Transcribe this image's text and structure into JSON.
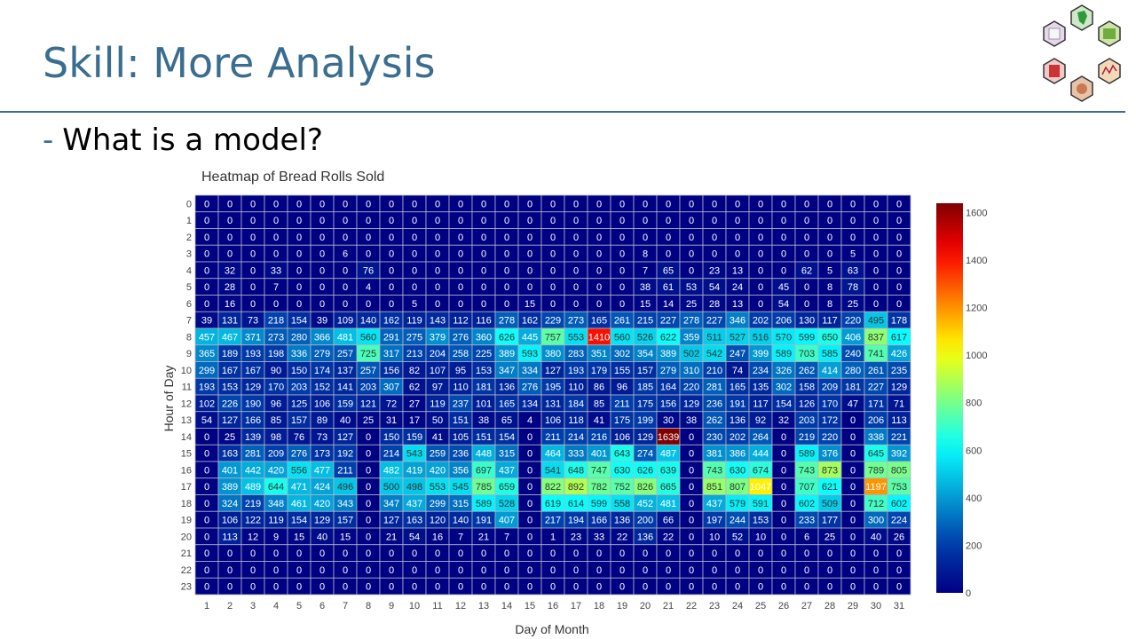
{
  "slide": {
    "title": "Skill: More Analysis",
    "bullet_marker": "-",
    "bullet": "What is a model?"
  },
  "colors": {
    "accent": "#3a6d8f"
  },
  "chart_data": {
    "type": "heatmap",
    "title": "Heatmap of Bread Rolls Sold",
    "xlabel": "Day of Month",
    "ylabel": "Hour of Day",
    "x": [
      1,
      2,
      3,
      4,
      5,
      6,
      7,
      8,
      9,
      10,
      11,
      12,
      13,
      14,
      15,
      16,
      17,
      18,
      19,
      20,
      21,
      22,
      23,
      24,
      25,
      26,
      27,
      28,
      29,
      30,
      31
    ],
    "y": [
      0,
      1,
      2,
      3,
      4,
      5,
      6,
      7,
      8,
      9,
      10,
      11,
      12,
      13,
      14,
      15,
      16,
      17,
      18,
      19,
      20,
      21,
      22,
      23
    ],
    "zlim": [
      0,
      1639
    ],
    "colorscale": "Jet",
    "colorbar_ticks": [
      0,
      200,
      400,
      600,
      800,
      1000,
      1200,
      1400,
      1600
    ],
    "z": [
      [
        0,
        0,
        0,
        0,
        0,
        0,
        0,
        0,
        0,
        0,
        0,
        0,
        0,
        0,
        0,
        0,
        0,
        0,
        0,
        0,
        0,
        0,
        0,
        0,
        0,
        0,
        0,
        0,
        0,
        0,
        0
      ],
      [
        0,
        0,
        0,
        0,
        0,
        0,
        0,
        0,
        0,
        0,
        0,
        0,
        0,
        0,
        0,
        0,
        0,
        0,
        0,
        0,
        0,
        0,
        0,
        0,
        0,
        0,
        0,
        0,
        0,
        0,
        0
      ],
      [
        0,
        0,
        0,
        0,
        0,
        0,
        0,
        0,
        0,
        0,
        0,
        0,
        0,
        0,
        0,
        0,
        0,
        0,
        0,
        0,
        0,
        0,
        0,
        0,
        0,
        0,
        0,
        0,
        0,
        0,
        0
      ],
      [
        0,
        0,
        0,
        0,
        0,
        0,
        6,
        0,
        0,
        0,
        0,
        0,
        0,
        0,
        0,
        0,
        0,
        0,
        0,
        8,
        0,
        0,
        0,
        0,
        0,
        0,
        0,
        0,
        5,
        0,
        0
      ],
      [
        0,
        32,
        0,
        33,
        0,
        0,
        0,
        76,
        0,
        0,
        0,
        0,
        0,
        0,
        0,
        0,
        0,
        0,
        0,
        7,
        65,
        0,
        23,
        13,
        0,
        0,
        62,
        5,
        63,
        0,
        0
      ],
      [
        0,
        28,
        0,
        7,
        0,
        0,
        0,
        4,
        0,
        0,
        0,
        0,
        0,
        0,
        0,
        0,
        0,
        0,
        0,
        38,
        61,
        53,
        54,
        24,
        0,
        45,
        0,
        8,
        78,
        0,
        0
      ],
      [
        0,
        16,
        0,
        0,
        0,
        0,
        0,
        0,
        0,
        5,
        0,
        0,
        0,
        0,
        15,
        0,
        0,
        0,
        0,
        15,
        14,
        25,
        28,
        13,
        0,
        54,
        0,
        8,
        25,
        0,
        0
      ],
      [
        39,
        131,
        73,
        218,
        154,
        39,
        109,
        140,
        162,
        119,
        143,
        112,
        116,
        278,
        162,
        229,
        273,
        165,
        261,
        215,
        227,
        278,
        227,
        346,
        202,
        206,
        130,
        117,
        220,
        495,
        178
      ],
      [
        457,
        467,
        371,
        273,
        280,
        366,
        481,
        560,
        291,
        275,
        379,
        276,
        360,
        626,
        445,
        757,
        553,
        1410,
        560,
        526,
        622,
        359,
        511,
        527,
        516,
        570,
        599,
        650,
        406,
        837,
        617
      ],
      [
        365,
        189,
        193,
        198,
        336,
        279,
        257,
        725,
        317,
        213,
        204,
        258,
        225,
        389,
        593,
        380,
        283,
        351,
        302,
        354,
        389,
        502,
        542,
        247,
        399,
        589,
        703,
        585,
        240,
        741,
        426
      ],
      [
        299,
        167,
        167,
        90,
        150,
        174,
        137,
        257,
        156,
        82,
        107,
        95,
        153,
        347,
        334,
        127,
        193,
        179,
        155,
        157,
        279,
        310,
        210,
        74,
        234,
        326,
        262,
        414,
        280,
        261,
        235
      ],
      [
        193,
        153,
        129,
        170,
        203,
        152,
        141,
        203,
        307,
        62,
        97,
        110,
        181,
        136,
        276,
        195,
        110,
        86,
        96,
        185,
        164,
        220,
        281,
        165,
        135,
        302,
        158,
        209,
        181,
        227,
        129
      ],
      [
        102,
        226,
        190,
        96,
        125,
        106,
        159,
        121,
        72,
        27,
        119,
        237,
        101,
        165,
        134,
        131,
        184,
        85,
        211,
        175,
        156,
        129,
        236,
        191,
        117,
        154,
        126,
        170,
        47,
        171,
        71
      ],
      [
        54,
        127,
        166,
        85,
        157,
        89,
        40,
        25,
        31,
        17,
        50,
        151,
        38,
        65,
        4,
        106,
        118,
        41,
        175,
        199,
        30,
        38,
        262,
        136,
        92,
        32,
        203,
        172,
        0,
        206,
        113
      ],
      [
        0,
        25,
        139,
        98,
        76,
        73,
        127,
        0,
        150,
        159,
        41,
        105,
        151,
        154,
        0,
        211,
        214,
        216,
        106,
        129,
        1639,
        0,
        230,
        202,
        264,
        0,
        219,
        220,
        0,
        338,
        221
      ],
      [
        0,
        163,
        281,
        209,
        276,
        173,
        192,
        0,
        214,
        543,
        259,
        236,
        448,
        315,
        0,
        464,
        333,
        401,
        643,
        274,
        487,
        0,
        381,
        386,
        444,
        0,
        589,
        376,
        0,
        645,
        392
      ],
      [
        0,
        401,
        442,
        420,
        556,
        477,
        211,
        0,
        482,
        419,
        420,
        356,
        697,
        437,
        0,
        541,
        648,
        747,
        630,
        626,
        639,
        0,
        743,
        630,
        674,
        0,
        743,
        873,
        0,
        789,
        805
      ],
      [
        0,
        389,
        489,
        644,
        471,
        424,
        496,
        0,
        500,
        498,
        553,
        545,
        785,
        659,
        0,
        822,
        892,
        782,
        752,
        826,
        665,
        0,
        851,
        807,
        1047,
        0,
        707,
        621,
        0,
        1197,
        753
      ],
      [
        0,
        324,
        219,
        348,
        461,
        420,
        343,
        0,
        347,
        437,
        299,
        315,
        589,
        528,
        0,
        619,
        614,
        599,
        558,
        452,
        481,
        0,
        437,
        579,
        591,
        0,
        602,
        509,
        0,
        712,
        602
      ],
      [
        0,
        106,
        122,
        119,
        154,
        129,
        157,
        0,
        127,
        163,
        120,
        140,
        191,
        407,
        0,
        217,
        194,
        166,
        136,
        200,
        66,
        0,
        197,
        244,
        153,
        0,
        233,
        177,
        0,
        300,
        224
      ],
      [
        0,
        113,
        12,
        9,
        15,
        40,
        15,
        0,
        21,
        54,
        16,
        7,
        21,
        7,
        0,
        1,
        23,
        33,
        22,
        136,
        22,
        0,
        10,
        52,
        10,
        0,
        6,
        25,
        0,
        40,
        26
      ],
      [
        0,
        0,
        0,
        0,
        0,
        0,
        0,
        0,
        0,
        0,
        0,
        0,
        0,
        0,
        0,
        0,
        0,
        0,
        0,
        0,
        0,
        0,
        0,
        0,
        0,
        0,
        0,
        0,
        0,
        0,
        0
      ],
      [
        0,
        0,
        0,
        0,
        0,
        0,
        0,
        0,
        0,
        0,
        0,
        0,
        0,
        0,
        0,
        0,
        0,
        0,
        0,
        0,
        0,
        0,
        0,
        0,
        0,
        0,
        0,
        0,
        0,
        0,
        0
      ],
      [
        0,
        0,
        0,
        0,
        0,
        0,
        0,
        0,
        0,
        0,
        0,
        0,
        0,
        0,
        0,
        0,
        0,
        0,
        0,
        0,
        0,
        0,
        0,
        0,
        0,
        0,
        0,
        0,
        0,
        0,
        0
      ]
    ]
  }
}
